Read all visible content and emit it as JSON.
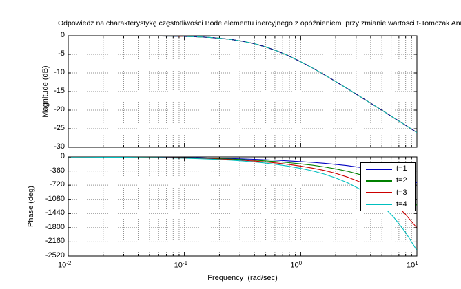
{
  "figure": {
    "title": "Odpowiedz na charakterystykę częstotliwości Bode elementu inercyjnego z opóźnieniem  przy zmianie wartosci t-Tomczak Anna",
    "xlabel": "Frequency  (rad/sec)",
    "background": "#ffffff",
    "grid_color": "#8f8f8f",
    "axis_color": "#000000"
  },
  "legend": {
    "position": "inside-top-right-of-phase-plot",
    "items": [
      {
        "label": "t=1"
      },
      {
        "label": "t=2"
      },
      {
        "label": "t=3"
      },
      {
        "label": "t=4"
      }
    ]
  },
  "chart_data": [
    {
      "type": "line",
      "name": "magnitude",
      "ylabel": "Magnitude (dB)",
      "xscale": "log",
      "grid": true,
      "xlim": [
        0.01,
        10
      ],
      "ylim": [
        -30,
        0
      ],
      "yticks": [
        0,
        -5,
        -10,
        -15,
        -20,
        -25,
        -30
      ],
      "xticks": [
        {
          "base": "10",
          "exp": "-2",
          "value": 0.01
        },
        {
          "base": "10",
          "exp": "-1",
          "value": 0.1
        },
        {
          "base": "10",
          "exp": "0",
          "value": 1
        },
        {
          "base": "10",
          "exp": "1",
          "value": 10
        }
      ],
      "x": [
        0.01,
        0.01259,
        0.01585,
        0.01995,
        0.02512,
        0.03162,
        0.03981,
        0.05012,
        0.0631,
        0.07943,
        0.1,
        0.1259,
        0.1585,
        0.1995,
        0.2512,
        0.3162,
        0.3981,
        0.5012,
        0.631,
        0.7943,
        1,
        1.259,
        1.585,
        1.995,
        2.512,
        3.162,
        3.981,
        5.012,
        6.31,
        7.943,
        10
      ],
      "shared_values": [
        -0.002,
        -0.003,
        -0.004,
        -0.007,
        -0.011,
        -0.017,
        -0.028,
        -0.043,
        -0.069,
        -0.108,
        -0.17,
        -0.267,
        -0.416,
        -0.642,
        -0.977,
        -1.461,
        -2.132,
        -3.021,
        -4.137,
        -5.47,
        -6.99,
        -8.657,
        -10.433,
        -12.284,
        -14.19,
        -16.127,
        -18.088,
        -20.064,
        -22.048,
        -24.021,
        -26.031
      ],
      "note": "all four curves t=1..t=4 coincide in magnitude",
      "series": [
        {
          "name": "t=1",
          "color": "#0000c0"
        },
        {
          "name": "t=2",
          "color": "#008000"
        },
        {
          "name": "t=3",
          "color": "#cc0000"
        },
        {
          "name": "t=4",
          "color": "#00bfbf"
        }
      ]
    },
    {
      "type": "line",
      "name": "phase",
      "ylabel": "Phase (deg)",
      "xscale": "log",
      "grid": true,
      "xlim": [
        0.01,
        10
      ],
      "ylim": [
        -2520,
        0
      ],
      "yticks": [
        0,
        -360,
        -720,
        -1080,
        -1440,
        -1800,
        -2160,
        -2520
      ],
      "xticks": [
        {
          "base": "10",
          "exp": "-2",
          "value": 0.01
        },
        {
          "base": "10",
          "exp": "-1",
          "value": 0.1
        },
        {
          "base": "10",
          "exp": "0",
          "value": 1
        },
        {
          "base": "10",
          "exp": "1",
          "value": 10
        }
      ],
      "x": [
        0.01,
        0.01259,
        0.01585,
        0.01995,
        0.02512,
        0.03162,
        0.03981,
        0.05012,
        0.0631,
        0.07943,
        0.1,
        0.1259,
        0.1585,
        0.1995,
        0.2512,
        0.3162,
        0.3981,
        0.5012,
        0.631,
        0.7943,
        1,
        1.259,
        1.585,
        1.995,
        2.512,
        3.162,
        3.981,
        5.012,
        6.31,
        7.943,
        10
      ],
      "series": [
        {
          "name": "t=1",
          "color": "#0000c0",
          "values": [
            -1.7,
            -2.2,
            -2.7,
            -3.4,
            -4.3,
            -5.4,
            -6.8,
            -8.6,
            -10.8,
            -13.6,
            -17,
            -21.3,
            -26.7,
            -33.2,
            -41.1,
            -50.4,
            -61.3,
            -73.8,
            -87.8,
            -103.3,
            -120.7,
            -140.5,
            -163.3,
            -190.2,
            -222.7,
            -262.2,
            -310.9,
            -371.5,
            -447,
            -541.5,
            -660.1
          ]
        },
        {
          "name": "t=2",
          "color": "#008000",
          "values": [
            -2.3,
            -2.9,
            -3.6,
            -4.6,
            -5.8,
            -7.2,
            -9.1,
            -11.5,
            -14.4,
            -18.1,
            -22.8,
            -28.6,
            -35.8,
            -44.6,
            -55.5,
            -68.5,
            -84.1,
            -102.5,
            -123.9,
            -148.8,
            -178,
            -212.6,
            -254.1,
            -304.5,
            -366.6,
            -443.4,
            -539,
            -658.6,
            -808.5,
            -996.6,
            -1233.1
          ]
        },
        {
          "name": "t=3",
          "color": "#cc0000",
          "values": [
            -2.9,
            -3.6,
            -4.5,
            -5.7,
            -7.2,
            -9.1,
            -11.4,
            -14.3,
            -18,
            -22.7,
            -28.5,
            -35.8,
            -44.8,
            -56,
            -69.9,
            -86.7,
            -107,
            -131.2,
            -160.1,
            -194.3,
            -235.3,
            -284.8,
            -344.9,
            -418.8,
            -510.5,
            -624.5,
            -767.1,
            -945.8,
            -1170.1,
            -1451.7,
            -1806
          ]
        },
        {
          "name": "t=4",
          "color": "#00bfbf",
          "values": [
            -3.4,
            -4.3,
            -5.4,
            -6.9,
            -8.6,
            -10.9,
            -13.7,
            -17.2,
            -21.7,
            -27.2,
            -34.2,
            -43,
            -53.9,
            -67.5,
            -84.2,
            -104.8,
            -129.8,
            -159.9,
            -196.2,
            -239.8,
            -292.6,
            -356.9,
            -435.7,
            -533.2,
            -654.5,
            -805.7,
            -995.2,
            -1233,
            -1531.6,
            -1906.8,
            -2379
          ]
        }
      ]
    }
  ]
}
